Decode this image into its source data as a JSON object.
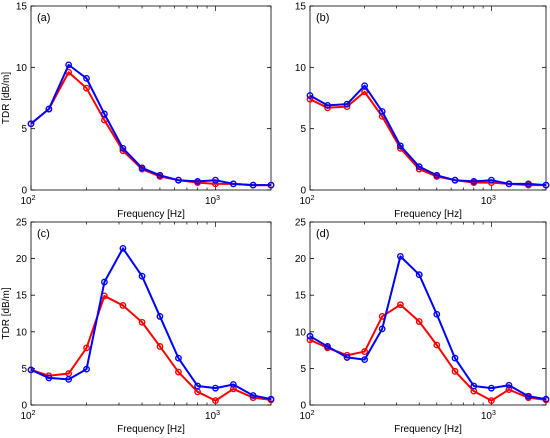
{
  "chart_data": [
    {
      "type": "line",
      "panel_label": "(a)",
      "xlabel": "Frequency [Hz]",
      "ylabel": "TDR [dB/m]",
      "xscale": "log",
      "xlim": [
        100,
        2000
      ],
      "ylim": [
        0,
        15
      ],
      "yticks": [
        0,
        5,
        10,
        15
      ],
      "x": [
        100,
        125,
        160,
        200,
        250,
        315,
        400,
        500,
        630,
        800,
        1000,
        1250,
        1600,
        2000
      ],
      "series": [
        {
          "color": "#ff0000",
          "values": [
            5.4,
            6.6,
            9.6,
            8.3,
            5.7,
            3.2,
            1.7,
            1.1,
            0.8,
            0.6,
            0.5,
            0.5,
            0.4,
            0.4
          ]
        },
        {
          "color": "#0000ff",
          "values": [
            5.4,
            6.6,
            10.2,
            9.1,
            6.2,
            3.4,
            1.8,
            1.2,
            0.8,
            0.7,
            0.8,
            0.5,
            0.4,
            0.4
          ]
        }
      ]
    },
    {
      "type": "line",
      "panel_label": "(b)",
      "xlabel": "Frequency [Hz]",
      "ylabel": "",
      "xscale": "log",
      "xlim": [
        100,
        2000
      ],
      "ylim": [
        0,
        15
      ],
      "yticks": [
        0,
        5,
        10,
        15
      ],
      "x": [
        100,
        125,
        160,
        200,
        250,
        315,
        400,
        500,
        630,
        800,
        1000,
        1250,
        1600,
        2000
      ],
      "series": [
        {
          "color": "#ff0000",
          "values": [
            7.4,
            6.7,
            6.8,
            8.0,
            6.0,
            3.4,
            1.7,
            1.1,
            0.8,
            0.6,
            0.6,
            0.5,
            0.4,
            0.4
          ]
        },
        {
          "color": "#0000ff",
          "values": [
            7.7,
            6.9,
            7.0,
            8.5,
            6.4,
            3.6,
            1.9,
            1.2,
            0.8,
            0.7,
            0.8,
            0.5,
            0.5,
            0.4
          ]
        }
      ]
    },
    {
      "type": "line",
      "panel_label": "(c)",
      "xlabel": "Frequency [Hz]",
      "ylabel": "TDR [dB/m]",
      "xscale": "log",
      "xlim": [
        100,
        2000
      ],
      "ylim": [
        0,
        25
      ],
      "yticks": [
        0,
        5,
        10,
        15,
        20,
        25
      ],
      "x": [
        100,
        125,
        160,
        200,
        250,
        315,
        400,
        500,
        630,
        800,
        1000,
        1250,
        1600,
        2000
      ],
      "series": [
        {
          "color": "#ff0000",
          "values": [
            4.8,
            4.0,
            4.3,
            7.8,
            14.9,
            13.6,
            11.3,
            8.0,
            4.5,
            1.8,
            0.6,
            2.2,
            1.0,
            0.7
          ]
        },
        {
          "color": "#0000ff",
          "values": [
            4.8,
            3.7,
            3.5,
            4.9,
            16.8,
            21.4,
            17.6,
            12.1,
            6.4,
            2.6,
            2.3,
            2.8,
            1.3,
            0.8
          ]
        }
      ]
    },
    {
      "type": "line",
      "panel_label": "(d)",
      "xlabel": "Frequency [Hz]",
      "ylabel": "",
      "xscale": "log",
      "xlim": [
        100,
        2000
      ],
      "ylim": [
        0,
        25
      ],
      "yticks": [
        0,
        5,
        10,
        15,
        20,
        25
      ],
      "x": [
        100,
        125,
        160,
        200,
        250,
        315,
        400,
        500,
        630,
        800,
        1000,
        1250,
        1600,
        2000
      ],
      "series": [
        {
          "color": "#ff0000",
          "values": [
            8.9,
            7.8,
            6.8,
            7.3,
            12.1,
            13.7,
            11.4,
            8.2,
            4.6,
            1.9,
            0.6,
            2.1,
            1.0,
            0.7
          ]
        },
        {
          "color": "#0000ff",
          "values": [
            9.4,
            8.0,
            6.5,
            6.2,
            10.4,
            20.3,
            17.8,
            12.4,
            6.4,
            2.6,
            2.3,
            2.7,
            1.2,
            0.8
          ]
        }
      ]
    }
  ]
}
